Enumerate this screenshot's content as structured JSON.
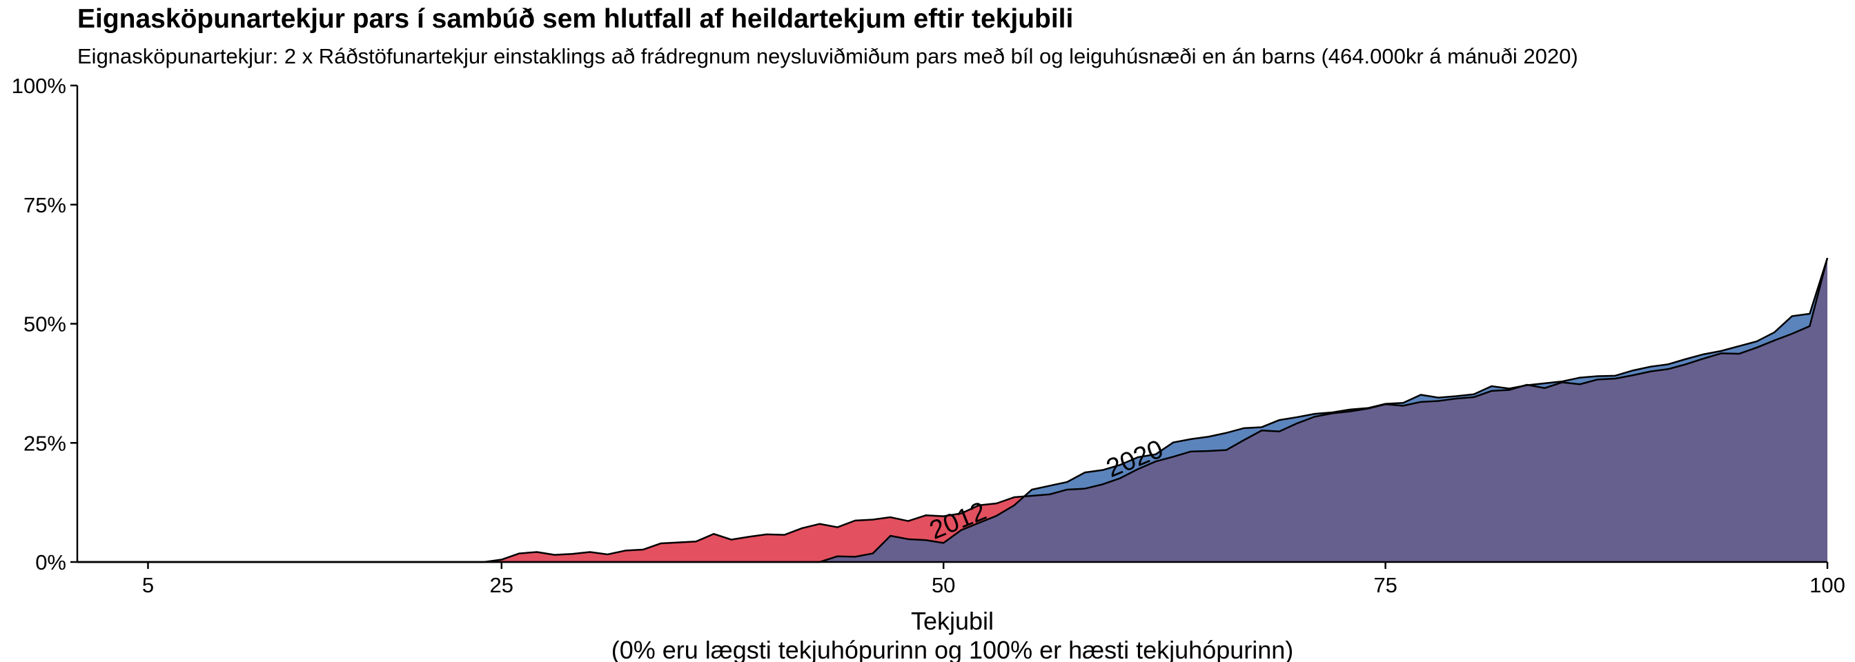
{
  "chart_data": {
    "type": "area",
    "title": "Eignasköpunartekjur pars í sambúð sem hlutfall af heildartekjum eftir tekjubili",
    "subtitle": "Eignasköpunartekjur: 2 x Ráðstöfunartekjur einstaklings að frádregnum neysluviðmiðum pars með bíl og leiguhúsnæði en án barns (464.000kr á mánuði 2020)",
    "xlabel": "Tekjubil",
    "xlabel_note": "(0% eru lægsti tekjuhópurinn og 100% er hæsti tekjuhópurinn)",
    "ylabel": "",
    "xlim": [
      1,
      100
    ],
    "ylim": [
      0,
      100
    ],
    "x_ticks": [
      5,
      25,
      50,
      75,
      100
    ],
    "x_tick_labels": [
      "5",
      "25",
      "50",
      "75",
      "100"
    ],
    "y_ticks": [
      0,
      25,
      50,
      75,
      100
    ],
    "y_tick_labels": [
      "0%",
      "25%",
      "50%",
      "75%",
      "100%"
    ],
    "grid": false,
    "legend": "none",
    "overlap_color": "#66608f",
    "series": [
      {
        "name": "2012",
        "color": "#e3505f",
        "label_at": [
          51,
          7
        ],
        "label_rotation": -22,
        "x": [
          1,
          24,
          25,
          26,
          27,
          28,
          29,
          30,
          31,
          32,
          33,
          34,
          35,
          36,
          37,
          38,
          39,
          40,
          41,
          42,
          43,
          44,
          45,
          46,
          47,
          48,
          49,
          50,
          51,
          52,
          53,
          54,
          55,
          56,
          57,
          58,
          59,
          60,
          61,
          62,
          63,
          64,
          65,
          66,
          67,
          68,
          69,
          70,
          71,
          72,
          73,
          74,
          75,
          76,
          77,
          78,
          79,
          80,
          81,
          82,
          83,
          84,
          85,
          86,
          87,
          88,
          89,
          90,
          91,
          92,
          93,
          94,
          95,
          96,
          97,
          98,
          99,
          100
        ],
        "y": [
          0,
          0,
          0.5,
          1.8,
          2.1,
          1.5,
          1.7,
          2.1,
          1.6,
          2.4,
          2.6,
          3.9,
          4.1,
          4.3,
          5.9,
          4.7,
          5.3,
          5.8,
          5.7,
          7.1,
          8,
          7.3,
          8.7,
          8.9,
          9.4,
          8.6,
          9.8,
          9.6,
          10.2,
          11.9,
          12.3,
          13.6,
          13.9,
          14.2,
          15.2,
          15.4,
          16.3,
          17.6,
          19.5,
          21.1,
          22.1,
          23.2,
          23.3,
          23.5,
          25.6,
          27.6,
          27.4,
          29.1,
          30.5,
          31.2,
          31.6,
          32.2,
          33.1,
          32.8,
          33.6,
          33.8,
          34.3,
          34.6,
          35.9,
          36.1,
          37.2,
          36.5,
          37.7,
          37.3,
          38.3,
          38.5,
          39.2,
          40,
          40.5,
          41.5,
          42.7,
          43.8,
          43.7,
          45,
          46.5,
          47.9,
          49.5,
          63.8
        ]
      },
      {
        "name": "2020",
        "color": "#5b84bd",
        "label_at": [
          61,
          20
        ],
        "label_rotation": -22,
        "x": [
          1,
          43,
          44,
          45,
          46,
          47,
          48,
          49,
          50,
          51,
          52,
          53,
          54,
          55,
          56,
          57,
          58,
          59,
          60,
          61,
          62,
          63,
          64,
          65,
          66,
          67,
          68,
          69,
          70,
          71,
          72,
          73,
          74,
          75,
          76,
          77,
          78,
          79,
          80,
          81,
          82,
          83,
          84,
          85,
          86,
          87,
          88,
          89,
          90,
          91,
          92,
          93,
          94,
          95,
          96,
          97,
          98,
          99,
          100
        ],
        "y": [
          0,
          0,
          1.2,
          1.1,
          1.8,
          5.5,
          4.8,
          4.6,
          4,
          6.7,
          8.2,
          9.7,
          11.9,
          15.2,
          16,
          16.8,
          18.8,
          19.3,
          20.4,
          22,
          22.6,
          25.1,
          25.8,
          26.3,
          27.1,
          28.1,
          28.3,
          29.8,
          30.4,
          31.1,
          31.4,
          32,
          32.3,
          33.2,
          33.4,
          35.1,
          34.5,
          34.8,
          35.2,
          36.9,
          36.4,
          37.1,
          37.5,
          37.9,
          38.7,
          39,
          39.1,
          40.2,
          41,
          41.5,
          42.6,
          43.6,
          44.3,
          45.3,
          46.3,
          48.2,
          51.6,
          52.1,
          63.8
        ]
      }
    ]
  }
}
